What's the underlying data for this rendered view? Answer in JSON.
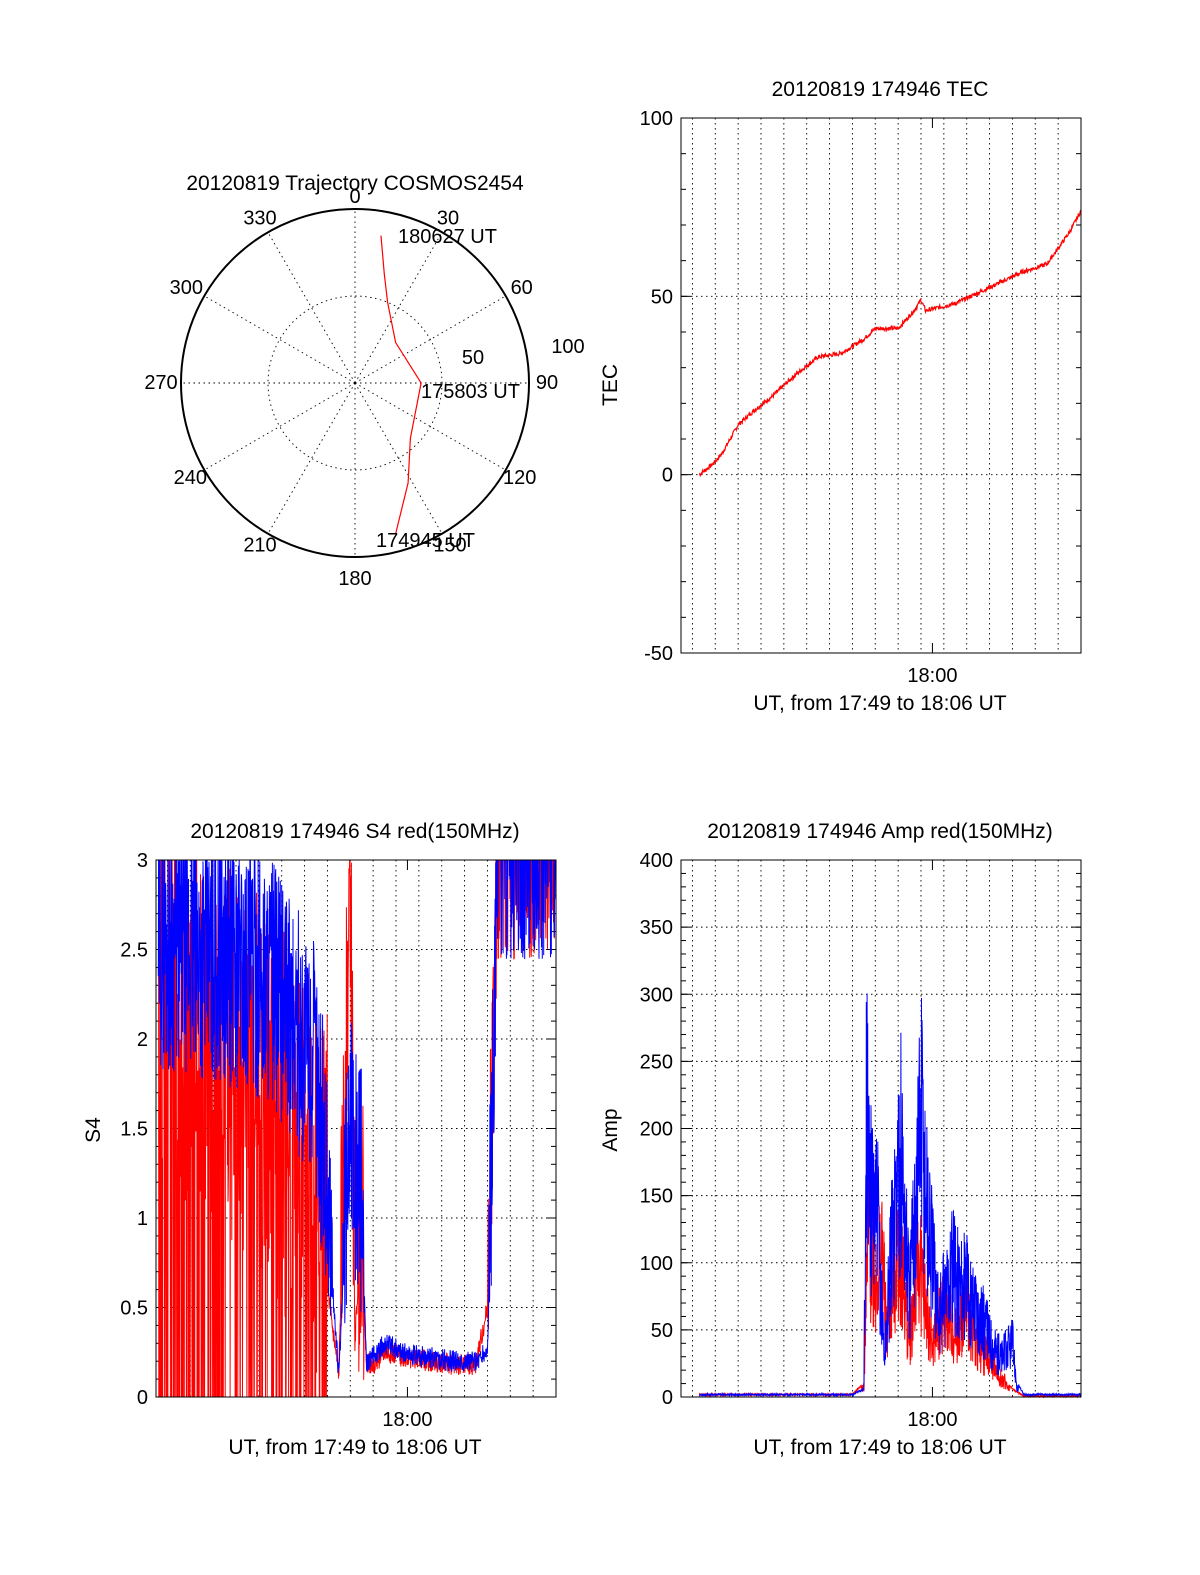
{
  "chart_data": [
    {
      "id": "trajectory",
      "type": "polar",
      "title": "20120819 Trajectory COSMOS2454",
      "azimuth_labels": [
        "0",
        "30",
        "60",
        "90",
        "120",
        "150",
        "180",
        "210",
        "240",
        "270",
        "300",
        "330"
      ],
      "radial_labels": [
        "50",
        "100"
      ],
      "radial_range": [
        0,
        100
      ],
      "grid": true,
      "series": [
        {
          "color": "#ff0000",
          "points": [
            {
              "az": 10,
              "r": 86
            },
            {
              "az": 15,
              "r": 65
            },
            {
              "az": 22,
              "r": 50
            },
            {
              "az": 45,
              "r": 33
            },
            {
              "az": 90,
              "r": 38
            },
            {
              "az": 135,
              "r": 45
            },
            {
              "az": 152,
              "r": 65
            },
            {
              "az": 165,
              "r": 90
            }
          ]
        }
      ],
      "annotations": [
        "180627 UT",
        "175803 UT",
        "174945 UT"
      ]
    },
    {
      "id": "tec",
      "type": "line",
      "title": "20120819 174946 TEC",
      "ylabel": "TEC",
      "xlabel": "UT, from 17:49 to 18:06 UT",
      "xtick_labels": [
        "18:00"
      ],
      "xlim": [
        -11,
        6.5
      ],
      "ylim": [
        -50,
        100
      ],
      "yticks": [
        "-50",
        "0",
        "50",
        "100"
      ],
      "grid": true,
      "series": [
        {
          "color": "#ff0000",
          "x": [
            -10.2,
            -9.6,
            -9.2,
            -8.5,
            -7.8,
            -7,
            -6,
            -5,
            -4,
            -3,
            -2.5,
            -1.5,
            -0.8,
            -0.5,
            -0.3,
            1,
            2,
            3,
            4,
            5,
            6,
            6.5
          ],
          "y": [
            0,
            3,
            6,
            14,
            18,
            22,
            28,
            33,
            34,
            38,
            41,
            41,
            46,
            49,
            46,
            48,
            51,
            54,
            57,
            59,
            68,
            74
          ]
        }
      ]
    },
    {
      "id": "s4",
      "type": "line",
      "title": "20120819 174946 S4 red(150MHz)",
      "ylabel": "S4",
      "xlabel": "UT, from 17:49 to 18:06 UT",
      "xtick_labels": [
        "18:00"
      ],
      "xlim": [
        -11,
        6.5
      ],
      "ylim": [
        0,
        3
      ],
      "yticks": [
        "0",
        "0.5",
        "1",
        "1.5",
        "2",
        "2.5",
        "3"
      ],
      "grid": true,
      "series": [
        {
          "color": "#ff0000",
          "envelope": {
            "x": [
              -11,
              -8,
              -6,
              -4,
              -3.5,
              -3,
              -2.5,
              -2.3,
              -2,
              -1.8,
              -1.5,
              -1,
              0,
              1,
              2,
              3,
              3.5,
              4,
              5,
              6.5
            ],
            "y": [
              1.8,
              1.5,
              1.2,
              0.8,
              0.6,
              0.12,
              2.8,
              0.3,
              1.0,
              0.2,
              0.18,
              0.25,
              0.22,
              0.2,
              0.18,
              0.18,
              0.5,
              3,
              3,
              3
            ]
          }
        },
        {
          "color": "#0000ff",
          "envelope": {
            "x": [
              -11,
              -8,
              -6,
              -4,
              -3.5,
              -3,
              -2.5,
              -2.3,
              -2,
              -1.8,
              -1.5,
              -1,
              0,
              1,
              2,
              3,
              3.5,
              4,
              5,
              6.5
            ],
            "y": [
              2.4,
              2.3,
              2.2,
              1.7,
              1.0,
              0.12,
              1.5,
              1.2,
              1.0,
              0.2,
              0.22,
              0.3,
              0.24,
              0.22,
              0.2,
              0.2,
              0.25,
              3,
              3,
              3
            ]
          }
        }
      ]
    },
    {
      "id": "amp",
      "type": "line",
      "title": "20120819 174946 Amp red(150MHz)",
      "ylabel": "Amp",
      "xlabel": "UT, from 17:49 to 18:06 UT",
      "xtick_labels": [
        "18:00"
      ],
      "xlim": [
        -11,
        6.5
      ],
      "ylim": [
        0,
        400
      ],
      "yticks": [
        "0",
        "50",
        "100",
        "150",
        "200",
        "250",
        "300",
        "350",
        "400"
      ],
      "grid": true,
      "series": [
        {
          "color": "#ff0000",
          "x": [
            -10.2,
            -3.5,
            -3.0,
            -2.8,
            -2.5,
            -2.2,
            -2.0,
            -1.5,
            -1.0,
            -0.6,
            -0.3,
            0.0,
            0.5,
            1.0,
            1.5,
            2.0,
            2.5,
            3.0,
            3.5,
            4.0,
            6.5
          ],
          "y": [
            1,
            1,
            10,
            170,
            120,
            150,
            60,
            160,
            55,
            140,
            90,
            50,
            90,
            60,
            90,
            50,
            40,
            20,
            5,
            0,
            0
          ]
        },
        {
          "color": "#0000ff",
          "x": [
            -10.2,
            -3.5,
            -3.0,
            -2.9,
            -2.7,
            -2.4,
            -2.1,
            -1.8,
            -1.4,
            -1.0,
            -0.7,
            -0.5,
            -0.2,
            0.3,
            0.8,
            1.5,
            2.0,
            2.5,
            3.0,
            3.5,
            3.7,
            4.0,
            6.5
          ],
          "y": [
            1,
            1,
            5,
            310,
            200,
            180,
            40,
            150,
            260,
            100,
            220,
            300,
            180,
            80,
            130,
            110,
            90,
            60,
            40,
            55,
            10,
            1,
            1
          ]
        }
      ]
    }
  ]
}
